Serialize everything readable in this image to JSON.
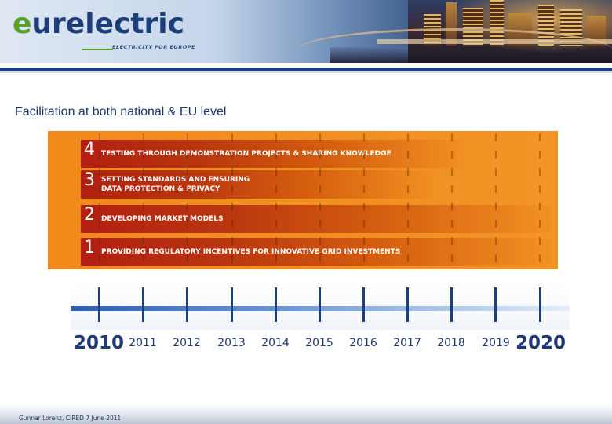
{
  "header": {
    "logo_text": "eurelectric",
    "tagline": "ELECTRICITY FOR EUROPE"
  },
  "slide": {
    "title": "Facilitation at both national & EU level",
    "bands": [
      {
        "num": "4",
        "label": "TESTING THROUGH DEMONSTRATION PROJECTS & SHARING KNOWLEDGE"
      },
      {
        "num": "3",
        "label": "SETTING STANDARDS AND ENSURING\nDATA PROTECTION & PRIVACY"
      },
      {
        "num": "2",
        "label": "DEVELOPING MARKET MODELS"
      },
      {
        "num": "1",
        "label": "PROVIDING REGULATORY INCENTIVES FOR INNOVATIVE GRID INVESTMENTS"
      }
    ],
    "years": [
      "2010",
      "2011",
      "2012",
      "2013",
      "2014",
      "2015",
      "2016",
      "2017",
      "2018",
      "2019",
      "2020"
    ]
  },
  "footer": {
    "text": "Gunnar Lorenz, CIRED 7 June 2011"
  },
  "colors": {
    "panel_orange": "#f0901f",
    "band_red": "#b21f11",
    "timeline_blue": "#2b5fb4",
    "brand_navy": "#1a3d7c",
    "brand_green": "#5aa12a"
  }
}
